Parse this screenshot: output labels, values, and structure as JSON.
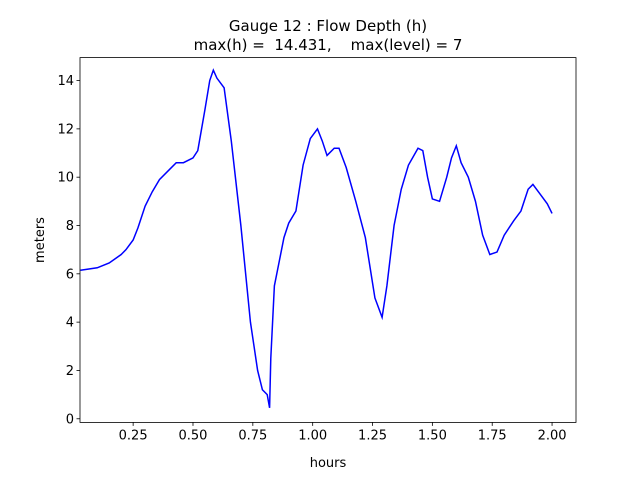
{
  "chart_data": {
    "type": "line",
    "title": "Gauge 12 : Flow Depth (h)",
    "subtitle": "max(h) =  14.431,    max(level) = 7",
    "x_label": "hours",
    "y_label": "meters",
    "xlim": [
      0.028,
      2.1
    ],
    "ylim": [
      -0.15,
      14.95
    ],
    "xticks": [
      0.25,
      {
        "value": 0.5,
        "label": "0.50"
      },
      0.75,
      {
        "value": 1,
        "label": "1.00"
      },
      1.25,
      {
        "value": 1.5,
        "label": "1.50"
      },
      1.75,
      {
        "value": 2,
        "label": "2.00"
      }
    ],
    "yticks": [
      0,
      2,
      4,
      6,
      8,
      10,
      12,
      14
    ],
    "series": [
      {
        "color": "#0000ff",
        "x": [
          0.03,
          0.1,
          0.15,
          0.2,
          0.22,
          0.25,
          0.27,
          0.3,
          0.33,
          0.36,
          0.4,
          0.43,
          0.46,
          0.5,
          0.52,
          0.55,
          0.57,
          0.585,
          0.6,
          0.63,
          0.66,
          0.7,
          0.74,
          0.77,
          0.79,
          0.81,
          0.82,
          0.825,
          0.84,
          0.86,
          0.88,
          0.9,
          0.93,
          0.96,
          0.99,
          1.02,
          1.04,
          1.06,
          1.09,
          1.11,
          1.14,
          1.18,
          1.22,
          1.26,
          1.29,
          1.31,
          1.34,
          1.37,
          1.4,
          1.44,
          1.46,
          1.48,
          1.5,
          1.53,
          1.56,
          1.58,
          1.6,
          1.62,
          1.65,
          1.68,
          1.71,
          1.74,
          1.77,
          1.8,
          1.84,
          1.87,
          1.9,
          1.92,
          1.95,
          1.98,
          2.0
        ],
        "values": [
          6.15,
          6.25,
          6.45,
          6.8,
          7.0,
          7.4,
          7.9,
          8.8,
          9.4,
          9.9,
          10.3,
          10.6,
          10.6,
          10.8,
          11.1,
          12.8,
          14.0,
          14.43,
          14.1,
          13.7,
          11.5,
          8.0,
          4.0,
          2.0,
          1.2,
          1.0,
          0.45,
          2.5,
          5.5,
          6.5,
          7.5,
          8.1,
          8.6,
          10.5,
          11.6,
          12.0,
          11.5,
          10.9,
          11.2,
          11.2,
          10.4,
          9.0,
          7.5,
          5.0,
          4.2,
          5.5,
          8.0,
          9.5,
          10.5,
          11.2,
          11.1,
          10.0,
          9.1,
          9.0,
          10.0,
          10.8,
          11.3,
          10.6,
          10.0,
          9.0,
          7.6,
          6.8,
          6.9,
          7.6,
          8.2,
          8.6,
          9.5,
          9.7,
          9.3,
          8.9,
          8.5
        ]
      }
    ]
  }
}
